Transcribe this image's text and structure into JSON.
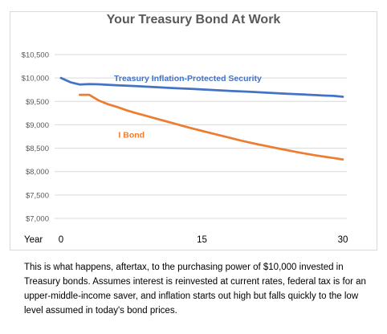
{
  "chart_data": {
    "type": "line",
    "title": "Your Treasury Bond At Work",
    "xlabel": "Year",
    "ylabel": "",
    "xlim": [
      0,
      30
    ],
    "ylim": [
      7000,
      10500
    ],
    "x_ticks": [
      0,
      15,
      30
    ],
    "x_tick_labels": [
      "0",
      "15",
      "30"
    ],
    "y_ticks": [
      7000,
      7500,
      8000,
      8500,
      9000,
      9500,
      10000,
      10500
    ],
    "y_tick_labels": [
      "$7,000",
      "$7,500",
      "$8,000",
      "$8,500",
      "$9,000",
      "$9,500",
      "$10,000",
      "$10,500"
    ],
    "grid": "horizontal",
    "legend": "inline labels",
    "series": [
      {
        "name": "Treasury Inflation-Protected Security",
        "color": "#4472C4",
        "x": [
          0,
          1,
          2,
          3,
          4,
          5,
          6,
          7,
          8,
          9,
          10,
          11,
          12,
          13,
          14,
          15,
          16,
          17,
          18,
          19,
          20,
          21,
          22,
          23,
          24,
          25,
          26,
          27,
          28,
          29,
          30
        ],
        "values": [
          10000,
          9910,
          9860,
          9870,
          9865,
          9855,
          9845,
          9835,
          9825,
          9815,
          9805,
          9795,
          9785,
          9775,
          9765,
          9755,
          9745,
          9735,
          9725,
          9715,
          9705,
          9695,
          9685,
          9675,
          9665,
          9655,
          9645,
          9635,
          9625,
          9618,
          9600
        ]
      },
      {
        "name": "I Bond",
        "color": "#ED7D31",
        "x": [
          2,
          3,
          4,
          5,
          6,
          7,
          8,
          9,
          10,
          11,
          12,
          13,
          14,
          15,
          16,
          17,
          18,
          19,
          20,
          21,
          22,
          23,
          24,
          25,
          26,
          27,
          28,
          29,
          30
        ],
        "values": [
          9640,
          9640,
          9520,
          9440,
          9380,
          9310,
          9250,
          9195,
          9140,
          9085,
          9030,
          8975,
          8920,
          8870,
          8820,
          8770,
          8720,
          8670,
          8625,
          8580,
          8540,
          8500,
          8460,
          8420,
          8385,
          8350,
          8320,
          8290,
          8260
        ]
      }
    ]
  },
  "caption": "This is what happens, aftertax, to the purchasing power of $10,000 invested in Treasury bonds. Assumes interest is reinvested at current rates, federal tax is for an upper-middle-income saver, and inflation starts out high but falls quickly to the low level assumed in today's bond prices."
}
